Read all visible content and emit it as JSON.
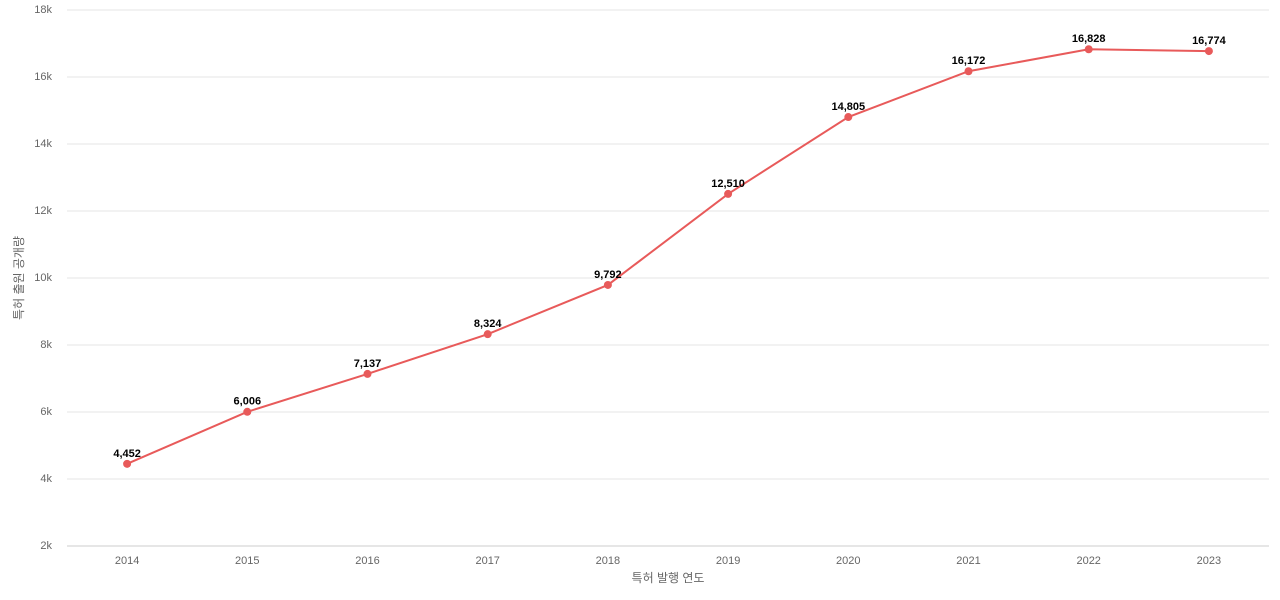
{
  "chart_data": {
    "type": "line",
    "x_label": "특허 발행 연도",
    "y_label": "특허 출원 공개량",
    "categories": [
      "2014",
      "2015",
      "2016",
      "2017",
      "2018",
      "2019",
      "2020",
      "2021",
      "2022",
      "2023"
    ],
    "values": [
      4452,
      6006,
      7137,
      8324,
      9792,
      12510,
      14805,
      16172,
      16828,
      16774
    ],
    "value_labels": [
      "4,452",
      "6,006",
      "7,137",
      "8,324",
      "9,792",
      "12,510",
      "14,805",
      "16,172",
      "16,828",
      "16,774"
    ],
    "color": "#e85a5a",
    "ylim": [
      2000,
      18000
    ],
    "yticks": [
      {
        "value": 2000,
        "label": "2k"
      },
      {
        "value": 4000,
        "label": "4k"
      },
      {
        "value": 6000,
        "label": "6k"
      },
      {
        "value": 8000,
        "label": "8k"
      },
      {
        "value": 10000,
        "label": "10k"
      },
      {
        "value": 12000,
        "label": "12k"
      },
      {
        "value": 14000,
        "label": "14k"
      },
      {
        "value": 16000,
        "label": "16k"
      },
      {
        "value": 18000,
        "label": "18k"
      }
    ],
    "grid": true
  }
}
